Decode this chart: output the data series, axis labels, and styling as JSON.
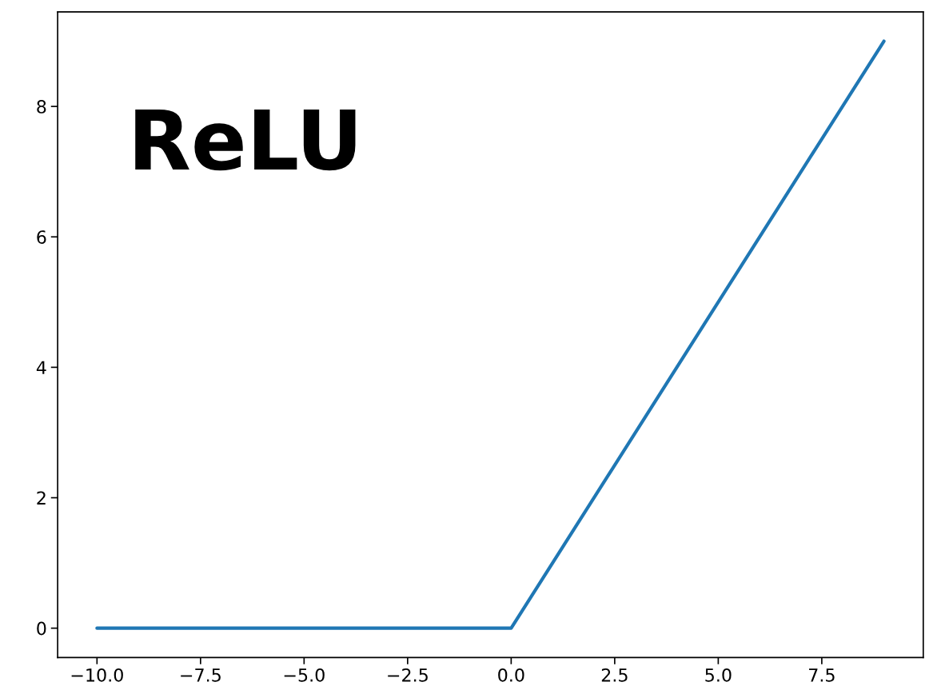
{
  "chart_data": {
    "type": "line",
    "x": [
      -10,
      0,
      9
    ],
    "series": [
      {
        "color": "#1f77b4",
        "values": [
          0,
          0,
          9
        ]
      }
    ],
    "annotations": [
      "ReLU"
    ],
    "xlim": [
      -10.95,
      9.95
    ],
    "ylim": [
      -0.45,
      9.45
    ],
    "xticks": [
      {
        "value": -10,
        "label": "−10.0"
      },
      {
        "value": -7.5,
        "label": "−7.5"
      },
      {
        "value": -5,
        "label": "−5.0"
      },
      {
        "value": -2.5,
        "label": "−2.5"
      },
      {
        "value": 0,
        "label": "0.0"
      },
      {
        "value": 2.5,
        "label": "2.5"
      },
      {
        "value": 5,
        "label": "5.0"
      },
      {
        "value": 7.5,
        "label": "7.5"
      }
    ],
    "yticks": [
      0,
      2,
      4,
      6,
      8
    ],
    "grid": false,
    "marker": "none",
    "line_style": "solid"
  }
}
